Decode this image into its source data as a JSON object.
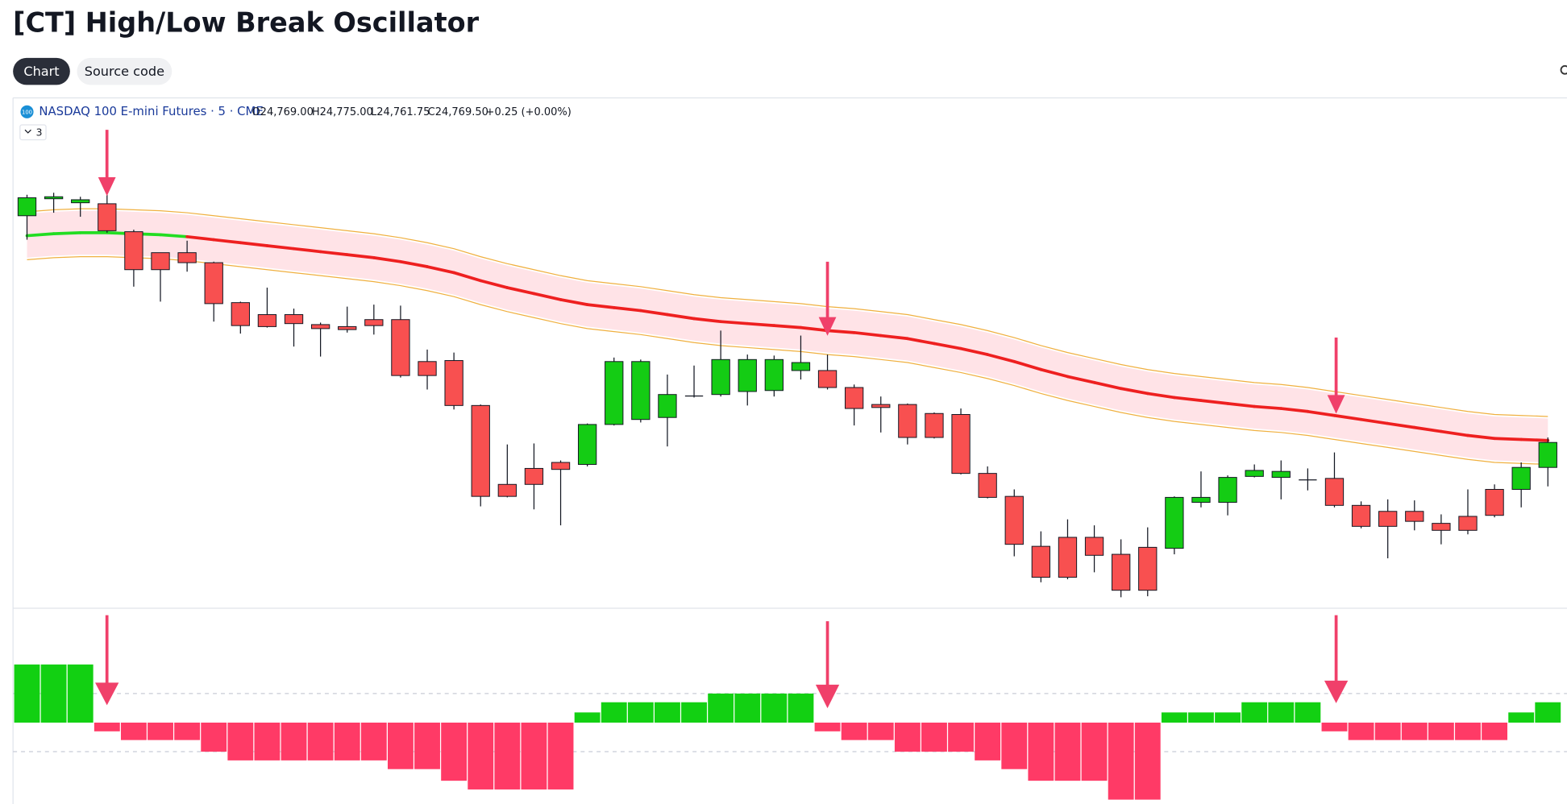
{
  "header": {
    "title": "[CT] High/Low Break Oscillator",
    "tabs": [
      "Chart",
      "Source code"
    ]
  },
  "legend": {
    "icon": "100",
    "symbol": "NASDAQ 100 E-mini Futures · 5 · CME",
    "open": "O24,769.00",
    "high": "H24,775.00",
    "low": "L24,761.75",
    "close": "C24,769.50",
    "change": "+0.25 (+0.00%)",
    "indicators": "3"
  },
  "chart_data": [
    {
      "type": "candlestick",
      "ylim": [
        24698.4,
        24800
      ],
      "up_color": "#14cc14",
      "down_color": "#f85050",
      "open": [
        24776.8,
        24780.2,
        24779.4,
        24779.2,
        24773.6,
        24769.4,
        24769.4,
        24767.4,
        24759.4,
        24757,
        24757,
        24755,
        24754.6,
        24756,
        24756,
        24747.6,
        24747.8,
        24738.8,
        24723,
        24726.2,
        24727.4,
        24727,
        24735,
        24736,
        24736.4,
        24740.8,
        24741,
        24741.6,
        24741.8,
        24745.8,
        24745.8,
        24742.4,
        24739,
        24739,
        24737.2,
        24737,
        24725.2,
        24720.6,
        24710.6,
        24712.4,
        24712.4,
        24709,
        24710.4,
        24710.2,
        24719.4,
        24719.4,
        24724.6,
        24724.4,
        24724,
        24724.2,
        24718.8,
        24717.6,
        24717.6,
        24715.2,
        24716.6,
        24722,
        24722,
        24726.4
      ],
      "high": [
        24781,
        24781.4,
        24780.6,
        24781,
        24774,
        24769.4,
        24771.8,
        24767.6,
        24759.6,
        24762.4,
        24758.2,
        24755.4,
        24758.6,
        24759,
        24758.8,
        24750,
        24749.4,
        24739,
        24731,
        24731.2,
        24727.8,
        24735.2,
        24748.4,
        24748,
        24745,
        24746.8,
        24753.8,
        24749,
        24748.8,
        24752.8,
        24749,
        24743,
        24740.6,
        24739.2,
        24737.4,
        24738.2,
        24726.6,
        24722,
        24713.6,
        24716,
        24714.8,
        24712,
        24714.4,
        24720.6,
        24725.6,
        24724.8,
        24727,
        24727.8,
        24726.2,
        24729.4,
        24719.6,
        24720,
        24719.8,
        24717,
        24722,
        24723,
        24727.4,
        24732.4
      ],
      "low": [
        24772,
        24777.4,
        24776.6,
        24773.4,
        24762.6,
        24759.6,
        24765.6,
        24755.6,
        24753.2,
        24754.4,
        24750.6,
        24748.6,
        24753.4,
        24753,
        24744.4,
        24742,
        24738,
        24718.6,
        24720.4,
        24718,
        24714.8,
        24726.6,
        24734.8,
        24735.4,
        24730.6,
        24740.4,
        24740.6,
        24738.8,
        24740.6,
        24744,
        24742,
        24734.8,
        24733.4,
        24731,
        24732.2,
        24725,
        24720.2,
        24708.6,
        24703.4,
        24704,
        24705.4,
        24700.4,
        24700.6,
        24709,
        24718.4,
        24716.8,
        24724.4,
        24720,
        24721.8,
        24718.4,
        24714.2,
        24708.2,
        24713.8,
        24711,
        24713,
        24716.4,
        24718.4,
        24722.6
      ],
      "close": [
        24780.4,
        24780.6,
        24780,
        24773.8,
        24766,
        24766,
        24767.4,
        24759.2,
        24754.8,
        24754.6,
        24755.2,
        24754.2,
        24754,
        24754.8,
        24744.8,
        24744.8,
        24738.8,
        24720.6,
        24720.6,
        24723,
        24726,
        24735,
        24747.6,
        24747.6,
        24741,
        24740.8,
        24748,
        24748,
        24748,
        24747.4,
        24742.4,
        24738.2,
        24738.4,
        24732.4,
        24732.4,
        24725.2,
        24720.4,
        24711,
        24704.4,
        24704.4,
        24708.8,
        24701.8,
        24701.8,
        24720.4,
        24720.4,
        24724.4,
        24725.8,
        24725.6,
        24724,
        24718.8,
        24714.6,
        24714.6,
        24715.6,
        24713.8,
        24713.8,
        24716.8,
        24726.4,
        24731.4
      ],
      "ma": [
        24772.8,
        24773.2,
        24773.4,
        24773.4,
        24773.2,
        24773,
        24772.6,
        24772,
        24771.4,
        24770.8,
        24770.2,
        24769.6,
        24769,
        24768.4,
        24767.6,
        24766.6,
        24765.4,
        24763.8,
        24762.4,
        24761.2,
        24760,
        24759,
        24758.4,
        24757.8,
        24757,
        24756.2,
        24755.6,
        24755.2,
        24754.8,
        24754.4,
        24753.8,
        24753.4,
        24752.8,
        24752.2,
        24751.2,
        24750.2,
        24749,
        24747.6,
        24746,
        24744.6,
        24743.4,
        24742.2,
        24741.2,
        24740.4,
        24739.8,
        24739.2,
        24738.6,
        24738.2,
        24737.6,
        24736.8,
        24736,
        24735.2,
        24734.4,
        24733.6,
        24732.8,
        24732.2,
        24732,
        24731.8
      ],
      "ma_state": [
        1,
        1,
        1,
        1,
        1,
        1,
        1,
        -1,
        -1,
        -1,
        -1,
        -1,
        -1,
        -1,
        -1,
        -1,
        -1,
        -1,
        -1,
        -1,
        -1,
        -1,
        -1,
        -1,
        -1,
        -1,
        -1,
        -1,
        -1,
        -1,
        -1,
        -1,
        -1,
        -1,
        -1,
        -1,
        -1,
        -1,
        -1,
        -1,
        -1,
        -1,
        -1,
        -1,
        -1,
        -1,
        -1,
        -1,
        -1,
        -1,
        -1,
        -1,
        -1,
        -1,
        -1,
        -1,
        -1,
        -1
      ],
      "ma_up_color": "#22dd22",
      "ma_down_color": "#ee2020",
      "band": 4.4,
      "band_color": "#ff8fa0",
      "envelope": 4.8,
      "envelope_color": "#f0b040"
    },
    {
      "type": "bar",
      "ylim": [
        -2.8,
        3.9
      ],
      "levels": [
        1,
        -1
      ],
      "up_color": "#12d012",
      "down_color": "#ff3a66",
      "values": [
        2,
        2,
        2,
        -0.3,
        -0.6,
        -0.6,
        -0.6,
        -1,
        -1.3,
        -1.3,
        -1.3,
        -1.3,
        -1.3,
        -1.3,
        -1.6,
        -1.6,
        -2,
        -2.3,
        -2.3,
        -2.3,
        -2.3,
        0.35,
        0.7,
        0.7,
        0.7,
        0.7,
        1,
        1,
        1,
        1,
        -0.3,
        -0.6,
        -0.6,
        -1,
        -1,
        -1,
        -1.3,
        -1.6,
        -2,
        -2,
        -2,
        -2.65,
        -2.65,
        0.35,
        0.35,
        0.35,
        0.7,
        0.7,
        0.7,
        -0.3,
        -0.6,
        -0.6,
        -0.6,
        -0.6,
        -0.6,
        -0.6,
        0.35,
        0.7
      ]
    }
  ]
}
